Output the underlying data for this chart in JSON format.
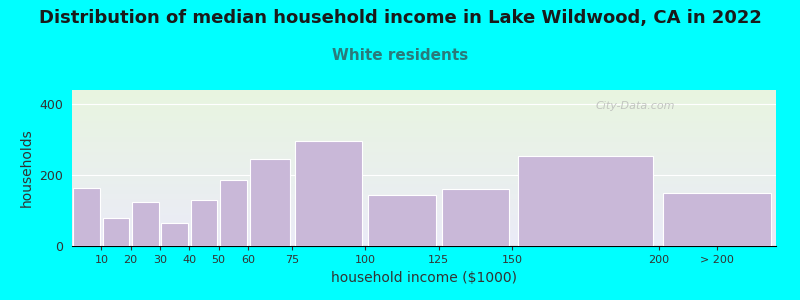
{
  "title": "Distribution of median household income in Lake Wildwood, CA in 2022",
  "subtitle": "White residents",
  "xlabel": "household income ($1000)",
  "ylabel": "households",
  "background_color": "#00FFFF",
  "bar_color": "#c9b8d8",
  "bar_edge_color": "#ffffff",
  "categories": [
    "10",
    "20",
    "30",
    "40",
    "50",
    "60",
    "75",
    "100",
    "125",
    "150",
    "200",
    "> 200"
  ],
  "bin_edges": [
    0,
    10,
    20,
    30,
    40,
    50,
    60,
    75,
    100,
    125,
    150,
    200,
    240
  ],
  "values": [
    165,
    80,
    125,
    65,
    130,
    185,
    245,
    295,
    145,
    160,
    255,
    150
  ],
  "yticks": [
    0,
    200,
    400
  ],
  "ylim": [
    0,
    440
  ],
  "title_fontsize": 13,
  "subtitle_fontsize": 11,
  "subtitle_color": "#2a7a7a",
  "watermark": "City-Data.com"
}
